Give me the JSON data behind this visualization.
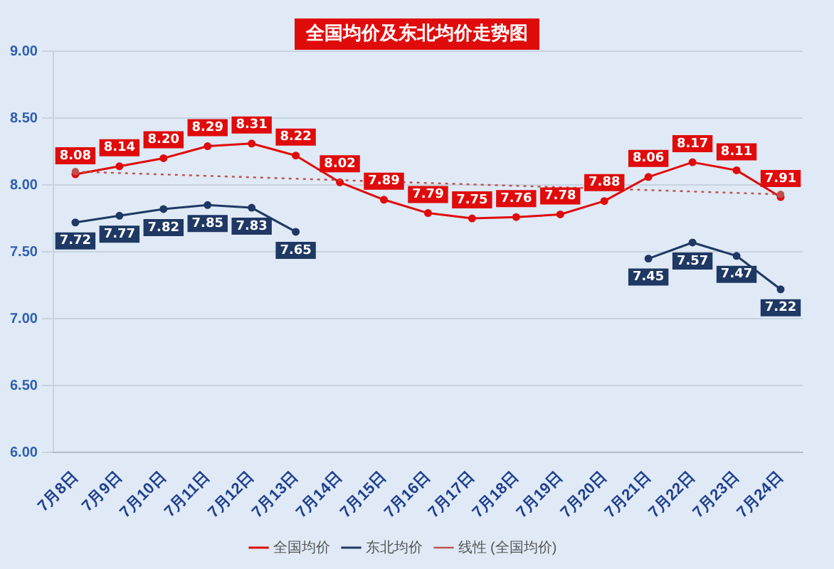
{
  "chart_data": {
    "type": "line",
    "title": "全国均价及东北均价走势图",
    "categories": [
      "7月8日",
      "7月9日",
      "7月10日",
      "7月11日",
      "7月12日",
      "7月13日",
      "7月14日",
      "7月15日",
      "7月16日",
      "7月17日",
      "7月18日",
      "7月19日",
      "7月20日",
      "7月21日",
      "7月22日",
      "7月23日",
      "7月24日"
    ],
    "series": [
      {
        "name": "全国均价",
        "color": "#e00b0b",
        "values": [
          8.08,
          8.14,
          8.2,
          8.29,
          8.31,
          8.22,
          8.02,
          7.89,
          7.79,
          7.75,
          7.76,
          7.78,
          7.88,
          8.06,
          8.17,
          8.11,
          7.91
        ],
        "value_labels": [
          "8.08",
          "8.14",
          "8.20",
          "8.29",
          "8.31",
          "8.22",
          "8.02",
          "7.89",
          "7.79",
          "7.75",
          "7.76",
          "7.78",
          "7.88",
          "8.06",
          "8.17",
          "8.11",
          "7.91"
        ]
      },
      {
        "name": "东北均价",
        "color": "#1f3864",
        "values": [
          7.72,
          7.77,
          7.82,
          7.85,
          7.83,
          7.65,
          null,
          null,
          null,
          null,
          null,
          null,
          null,
          7.45,
          7.57,
          7.47,
          7.22
        ],
        "value_labels": [
          "7.72",
          "7.77",
          "7.82",
          "7.85",
          "7.83",
          "7.65",
          null,
          null,
          null,
          null,
          null,
          null,
          null,
          "7.45",
          "7.57",
          "7.47",
          "7.22"
        ]
      },
      {
        "name": "线性 (全国均价)",
        "color": "#c0504d",
        "line_style": "dotted",
        "values": [
          8.1,
          null,
          null,
          null,
          null,
          null,
          null,
          null,
          null,
          null,
          null,
          null,
          null,
          null,
          null,
          null,
          7.93
        ]
      }
    ],
    "ylim": [
      6,
      9
    ],
    "yticks": [
      {
        "value": 6,
        "label": "6.00"
      },
      {
        "value": 6.5,
        "label": "6.50"
      },
      {
        "value": 7,
        "label": "7.00"
      },
      {
        "value": 7.5,
        "label": "7.50"
      },
      {
        "value": 8,
        "label": "8.00"
      },
      {
        "value": 8.5,
        "label": "8.50"
      },
      {
        "value": 9,
        "label": "9.00"
      }
    ],
    "grid": "y",
    "legend": "bottom",
    "marker": "circle",
    "line_style": "solid"
  }
}
